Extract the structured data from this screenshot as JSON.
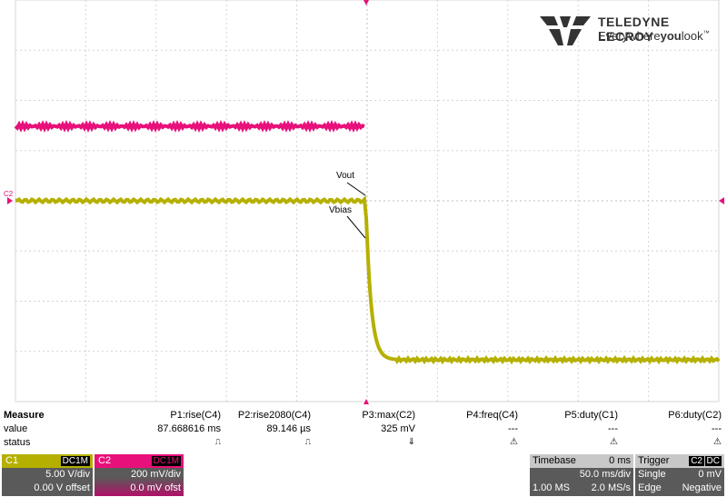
{
  "logo": {
    "name": "TELEDYNE LECROY",
    "tagline_pre": "Everywhere",
    "tagline_bold": "you",
    "tagline_post": "look",
    "superscript": "™"
  },
  "traces": {
    "c1": {
      "color": "#b5b000",
      "label": "C1"
    },
    "c2": {
      "color": "#e8107a",
      "label": "C2"
    }
  },
  "annotations": {
    "vout": "Vout",
    "vbias": "Vbias",
    "c2_marker": "C2"
  },
  "measure": {
    "header": "Measure",
    "row_value": "value",
    "row_status": "status",
    "columns": [
      {
        "name": "P1:rise(C4)",
        "value": "87.668616 ms",
        "status": "⎍"
      },
      {
        "name": "P2:rise2080(C4)",
        "value": "89.146 µs",
        "status": "⎍"
      },
      {
        "name": "P3:max(C2)",
        "value": "325 mV",
        "status": "⇓"
      },
      {
        "name": "P4:freq(C4)",
        "value": "---",
        "status": "⚠"
      },
      {
        "name": "P5:duty(C1)",
        "value": "---",
        "status": "⚠"
      },
      {
        "name": "P6:duty(C2)",
        "value": "---",
        "status": "⚠"
      }
    ]
  },
  "channels": {
    "c1": {
      "label": "C1",
      "coupling": "DC1M",
      "scale": "5.00 V/div",
      "offset": "0.00 V offset"
    },
    "c2": {
      "label": "C2",
      "coupling": "DC1M",
      "scale": "200 mV/div",
      "offset": "0.0 mV ofst"
    }
  },
  "timebase": {
    "label": "Timebase",
    "delay": "0 ms",
    "scale": "50.0 ms/div",
    "samples": "1.00 MS",
    "rate": "2.0 MS/s"
  },
  "trigger": {
    "label": "Trigger",
    "source": "C2",
    "coupling": "DC",
    "mode": "Single",
    "level": "0 mV",
    "type": "Edge",
    "slope": "Negative"
  }
}
